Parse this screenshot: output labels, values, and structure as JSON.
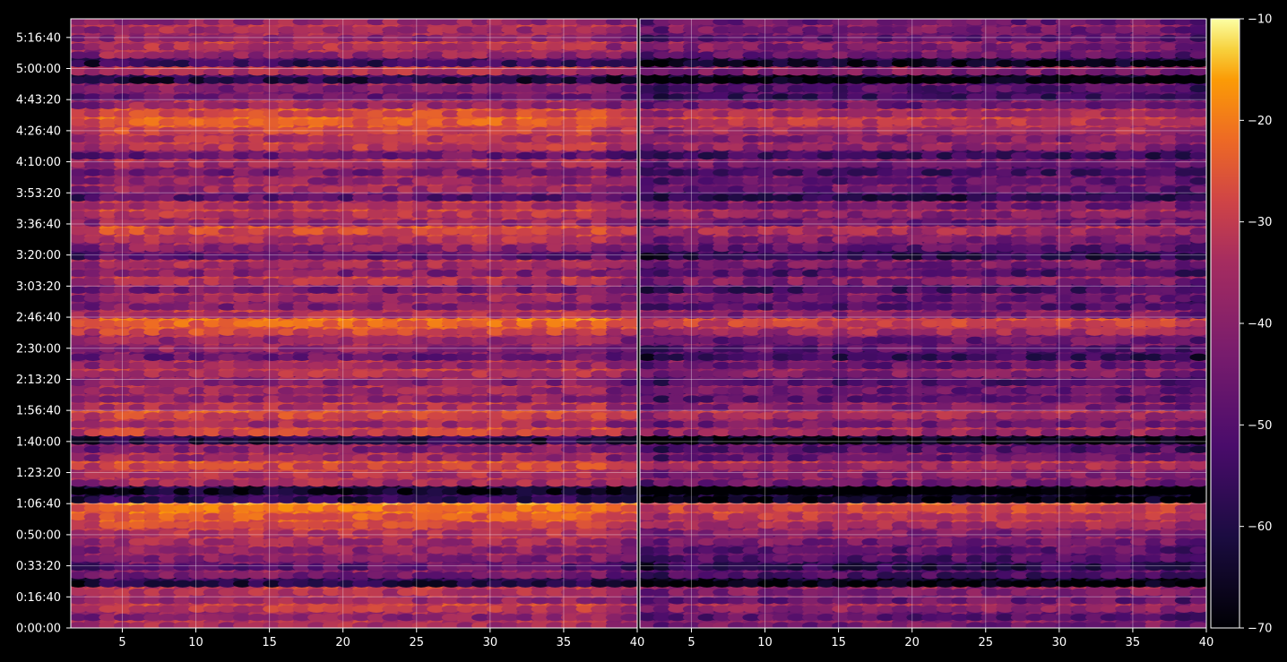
{
  "chart_data": {
    "type": "heatmap",
    "title": "",
    "xlabel": "",
    "ylabel": "",
    "grid": true,
    "panels": [
      {
        "name": "",
        "xlim": [
          1.5,
          40
        ],
        "x_ticks": [
          "5",
          "10",
          "15",
          "20",
          "25",
          "30",
          "35",
          "40"
        ]
      },
      {
        "name": "",
        "xlim": [
          1.5,
          40
        ],
        "x_ticks": [
          "5",
          "10",
          "15",
          "20",
          "25",
          "30",
          "35",
          "40"
        ]
      }
    ],
    "x_tick_values": [
      5,
      10,
      15,
      20,
      25,
      30,
      35,
      40
    ],
    "y_axis": {
      "unit": "h:mm:ss",
      "ylim_seconds": [
        0,
        19600
      ],
      "tick_labels": [
        "0:00:00",
        "0:16:40",
        "0:33:20",
        "0:50:00",
        "1:06:40",
        "1:23:20",
        "1:40:00",
        "1:56:40",
        "2:13:20",
        "2:30:00",
        "2:46:40",
        "3:03:20",
        "3:20:00",
        "3:36:40",
        "3:53:20",
        "4:10:00",
        "4:26:40",
        "4:43:20",
        "5:00:00",
        "5:16:40"
      ],
      "tick_seconds": [
        0,
        1000,
        2000,
        3000,
        4000,
        5000,
        6000,
        7000,
        8000,
        9000,
        10000,
        11000,
        12000,
        13000,
        14000,
        15000,
        16000,
        17000,
        18000,
        19000
      ]
    },
    "colorbar": {
      "colormap": "inferno",
      "range": [
        -70,
        -10
      ],
      "tick_values": [
        -70,
        -60,
        -50,
        -40,
        -30,
        -20,
        -10
      ],
      "tick_labels": [
        "−70",
        "−60",
        "−50",
        "−40",
        "−30",
        "−20",
        "−10"
      ]
    },
    "band_intensity_profile": {
      "description_units": "approximate value per time band (dB-like), bands every ~270 s",
      "left_panel_offset": 0,
      "right_panel_offset": -8,
      "bands_seconds": [
        100,
        370,
        640,
        910,
        1180,
        1450,
        1720,
        1990,
        2260,
        2530,
        2800,
        3070,
        3340,
        3610,
        3880,
        4150,
        4420,
        4690,
        4960,
        5230,
        5500,
        5770,
        6040,
        6310,
        6580,
        6850,
        7120,
        7390,
        7660,
        7930,
        8200,
        8470,
        8740,
        9010,
        9280,
        9550,
        9820,
        10090,
        10360,
        10630,
        10900,
        11170,
        11440,
        11710,
        11980,
        12250,
        12520,
        12790,
        13060,
        13330,
        13600,
        13870,
        14140,
        14410,
        14680,
        14950,
        15220,
        15490,
        15760,
        16030,
        16300,
        16570,
        16840,
        17110,
        17380,
        17650,
        17920,
        18190,
        18460,
        18730,
        19000,
        19270,
        19540
      ],
      "bands_values": [
        -38,
        -42,
        -34,
        -40,
        -36,
        -60,
        -45,
        -50,
        -44,
        -42,
        -38,
        -36,
        -30,
        -26,
        -22,
        -58,
        -64,
        -38,
        -36,
        -30,
        -40,
        -44,
        -60,
        -32,
        -38,
        -30,
        -36,
        -42,
        -40,
        -44,
        -36,
        -40,
        -48,
        -42,
        -40,
        -30,
        -24,
        -36,
        -44,
        -40,
        -46,
        -36,
        -44,
        -38,
        -50,
        -42,
        -36,
        -30,
        -40,
        -34,
        -38,
        -50,
        -40,
        -42,
        -46,
        -38,
        -48,
        -34,
        -36,
        -30,
        -26,
        -30,
        -40,
        -48,
        -44,
        -60,
        -36,
        -56,
        -40,
        -36,
        -42,
        -38,
        -40
      ]
    }
  }
}
